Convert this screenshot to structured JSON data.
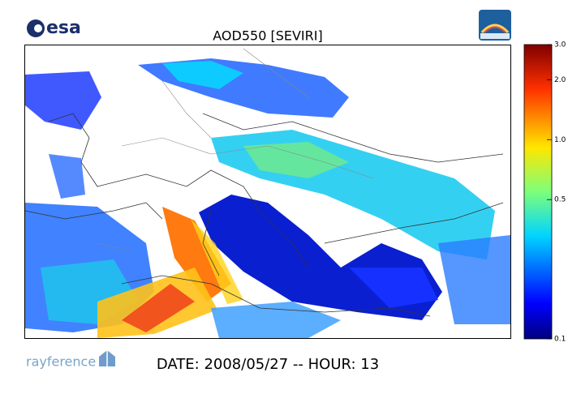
{
  "header": {
    "logo": "esa",
    "title": "AOD550   [SEVIRI]"
  },
  "colorbar": {
    "lim": [
      0.1,
      3
    ],
    "log": true,
    "ticks": [
      {
        "value": 3,
        "label": "3.0"
      },
      {
        "value": 2,
        "label": "2.0"
      },
      {
        "value": 1,
        "label": "1.0"
      },
      0.5,
      0.1
    ]
  },
  "footer": {
    "logo": "rayference",
    "date": "DATE: 2008/05/27 -- HOUR: 13"
  }
}
